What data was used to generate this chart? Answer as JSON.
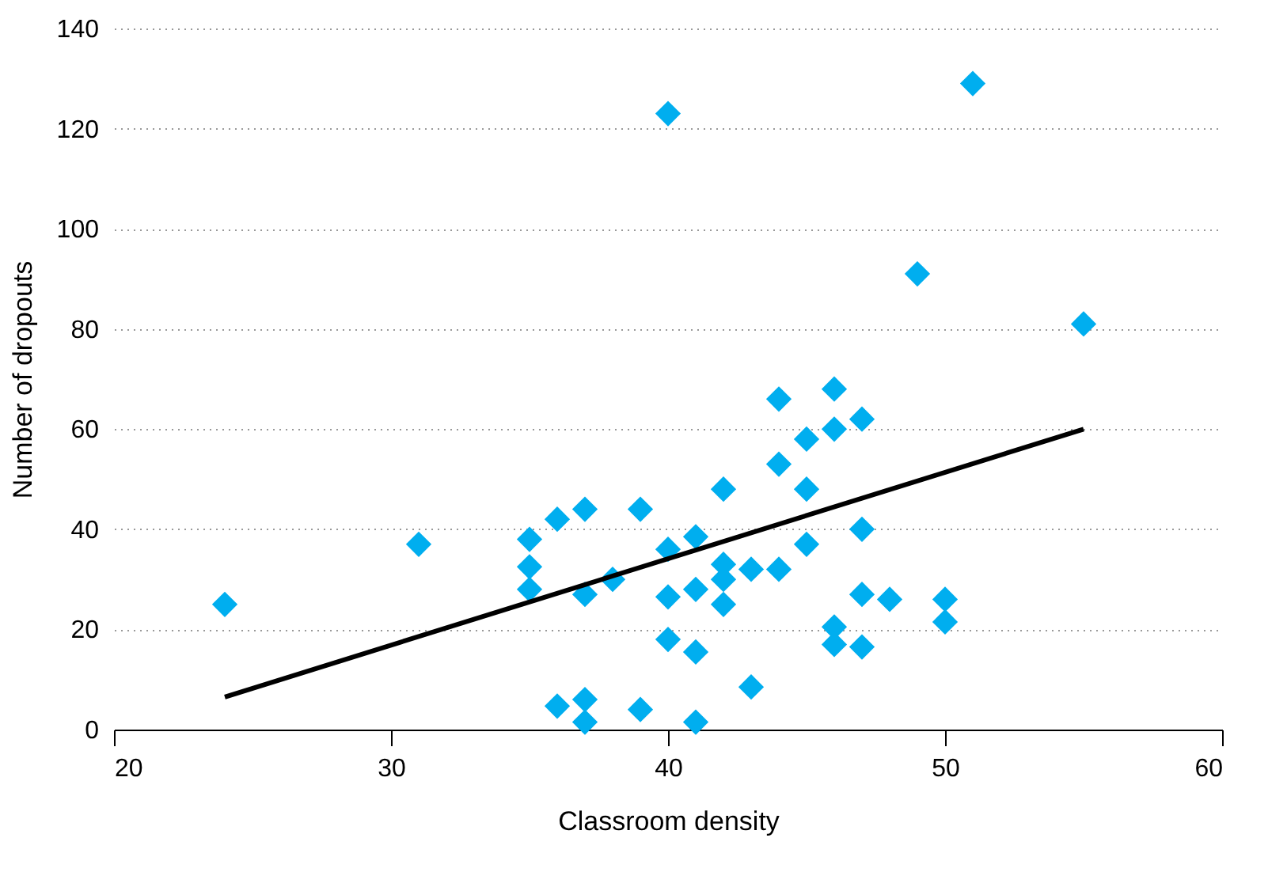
{
  "chart_data": {
    "type": "scatter",
    "xlabel": "Classroom density",
    "ylabel": "Number of dropouts",
    "xlim": [
      20,
      60
    ],
    "xticks": [
      20,
      30,
      40,
      50,
      60
    ],
    "ylim": [
      0,
      140
    ],
    "yticks": [
      0,
      20,
      40,
      60,
      80,
      100,
      120,
      140
    ],
    "grid": "y",
    "marker": "diamond",
    "series": [
      {
        "color": "#00aeef",
        "x": [
          24,
          31,
          35,
          35,
          35,
          36,
          37,
          37,
          38,
          39,
          40,
          40,
          40,
          41,
          41,
          41,
          42,
          42,
          42,
          42,
          43,
          43,
          44,
          44,
          44,
          45,
          45,
          45,
          46,
          46,
          46,
          46,
          47,
          47,
          47,
          47,
          48,
          50,
          50,
          36,
          37,
          37,
          39,
          41,
          40,
          51,
          49,
          55
        ],
        "values": [
          25,
          37,
          38,
          32.5,
          28,
          42,
          44,
          27,
          30,
          44,
          36,
          26.5,
          18,
          38.5,
          28,
          15.5,
          48,
          33,
          30,
          25,
          32,
          8.5,
          66,
          53,
          32,
          58,
          48,
          37,
          68,
          60,
          20.5,
          17,
          62,
          40,
          27,
          16.5,
          26,
          26,
          21.5,
          4.7,
          6,
          1.5,
          4,
          1.5,
          123,
          129,
          91,
          81
        ]
      },
      {
        "type": "line",
        "marker": "none",
        "color": "#000000",
        "x": [
          24,
          55
        ],
        "values": [
          6.5,
          60
        ]
      }
    ]
  }
}
